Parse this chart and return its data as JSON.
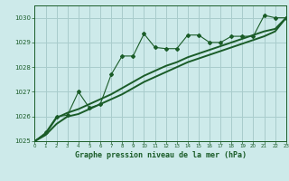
{
  "title": "Graphe pression niveau de la mer (hPa)",
  "background_color": "#cdeaea",
  "grid_color": "#a8cccc",
  "line_color": "#1a5c28",
  "x_min": 0,
  "x_max": 23,
  "y_min": 1025,
  "y_max": 1030.5,
  "yticks": [
    1025,
    1026,
    1027,
    1028,
    1029,
    1030
  ],
  "xticks": [
    0,
    1,
    2,
    3,
    4,
    5,
    6,
    7,
    8,
    9,
    10,
    11,
    12,
    13,
    14,
    15,
    16,
    17,
    18,
    19,
    20,
    21,
    22,
    23
  ],
  "series1_x": [
    0,
    1,
    2,
    3,
    4,
    5,
    6,
    7,
    8,
    9,
    10,
    11,
    12,
    13,
    14,
    15,
    16,
    17,
    18,
    19,
    20,
    21,
    22,
    23
  ],
  "series1_y": [
    1025.0,
    1025.35,
    1026.0,
    1026.05,
    1027.0,
    1026.35,
    1026.5,
    1027.7,
    1028.45,
    1028.45,
    1029.35,
    1028.8,
    1028.75,
    1028.75,
    1029.3,
    1029.3,
    1029.0,
    1029.0,
    1029.25,
    1029.25,
    1029.25,
    1030.1,
    1030.0,
    1030.0
  ],
  "series2_x": [
    0,
    1,
    2,
    3,
    4,
    5,
    6,
    7,
    8,
    9,
    10,
    11,
    12,
    13,
    14,
    15,
    16,
    17,
    18,
    19,
    20,
    21,
    22,
    23
  ],
  "series2_y": [
    1025.0,
    1025.3,
    1025.95,
    1026.15,
    1026.3,
    1026.5,
    1026.7,
    1026.9,
    1027.15,
    1027.4,
    1027.65,
    1027.85,
    1028.05,
    1028.2,
    1028.4,
    1028.55,
    1028.7,
    1028.85,
    1029.0,
    1029.15,
    1029.3,
    1029.45,
    1029.55,
    1030.0
  ],
  "series3_x": [
    0,
    1,
    2,
    3,
    4,
    5,
    6,
    7,
    8,
    9,
    10,
    11,
    12,
    13,
    14,
    15,
    16,
    17,
    18,
    19,
    20,
    21,
    22,
    23
  ],
  "series3_y": [
    1025.0,
    1025.25,
    1025.7,
    1026.0,
    1026.1,
    1026.3,
    1026.5,
    1026.7,
    1026.9,
    1027.15,
    1027.4,
    1027.6,
    1027.8,
    1028.0,
    1028.2,
    1028.35,
    1028.5,
    1028.65,
    1028.8,
    1028.95,
    1029.1,
    1029.25,
    1029.45,
    1030.0
  ]
}
